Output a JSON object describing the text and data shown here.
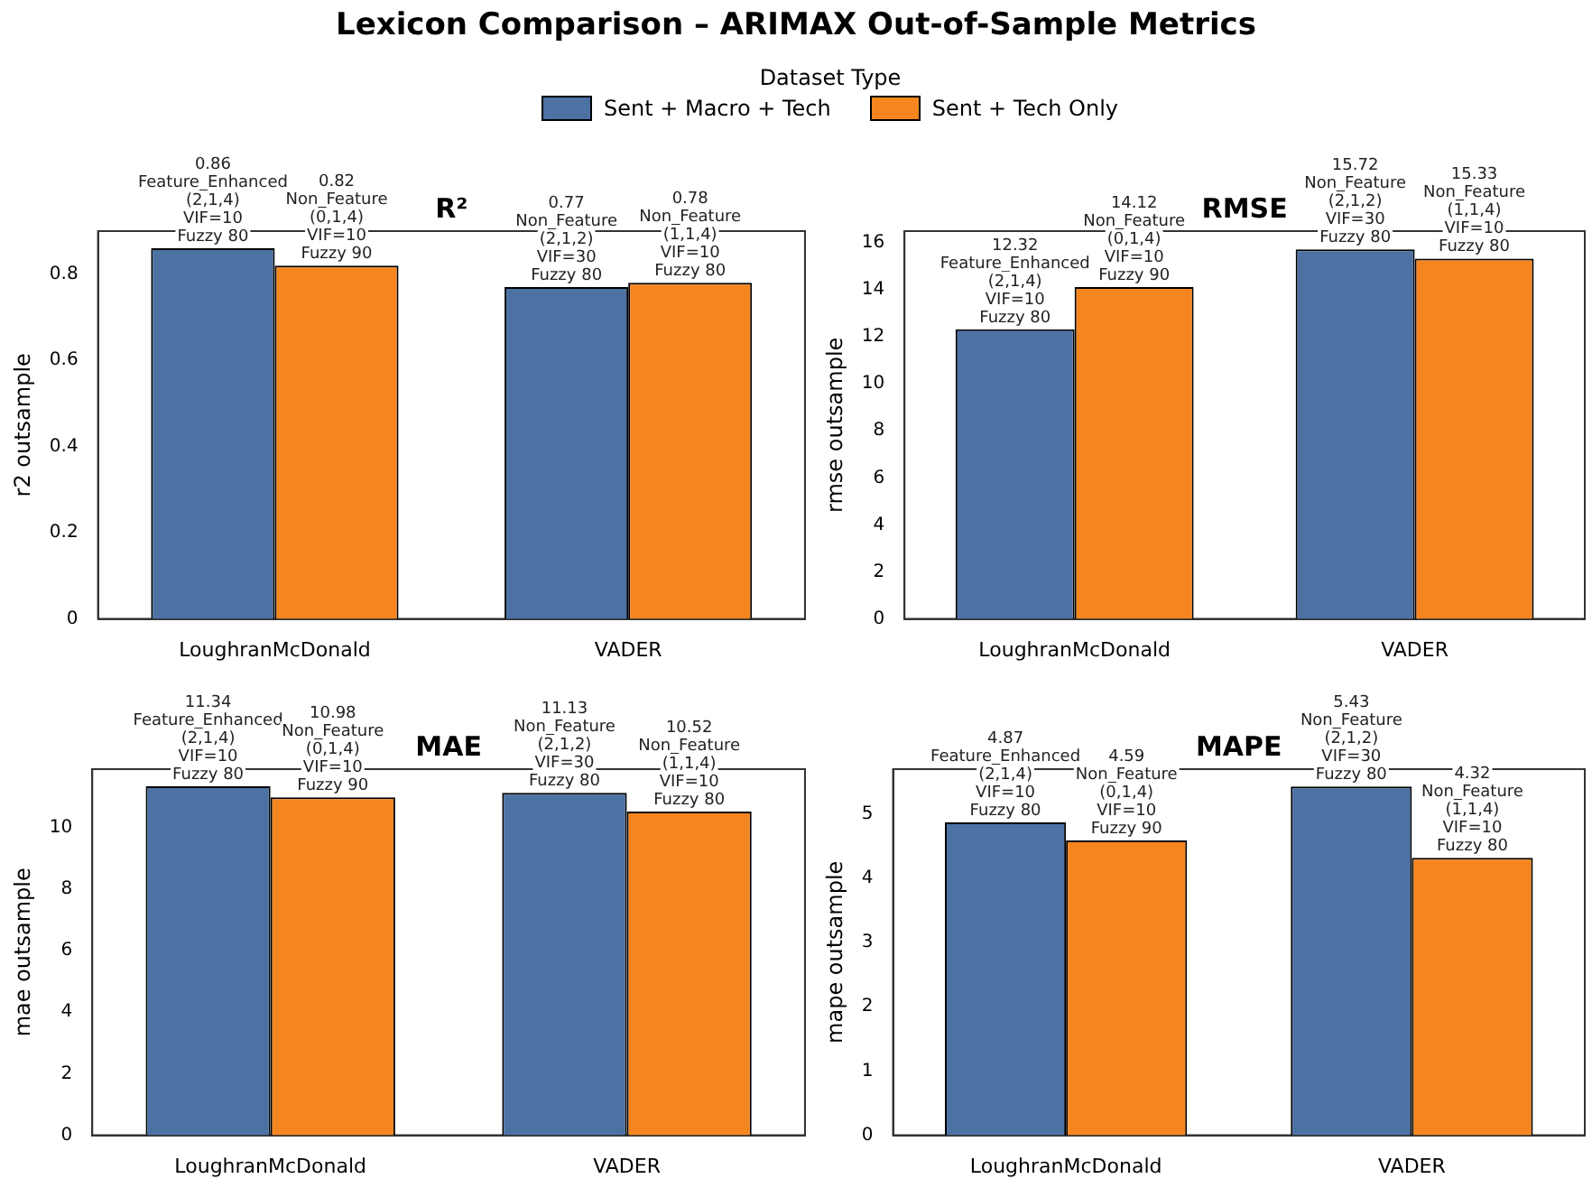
{
  "chart_data": [
    {
      "type": "other",
      "title": "Lexicon Comparison – ARIMAX Out-of-Sample Metrics"
    },
    {
      "type": "bar",
      "title": "R²",
      "ylabel": "r2 outsample",
      "categories": [
        "LoughranMcDonald",
        "VADER"
      ],
      "ylim": [
        0,
        0.9
      ],
      "yticks": [
        0,
        0.2,
        0.4,
        0.6,
        0.8
      ],
      "legend": "top",
      "legend_title": "Dataset Type",
      "series": [
        {
          "name": "Sent + Macro + Tech",
          "color": "#4c72a4",
          "values": [
            0.86,
            0.77
          ],
          "value_labels": [
            "0.86\nFeature_Enhanced\n(2,1,4)\nVIF=10\nFuzzy 80",
            "0.77\nNon_Feature\n(2,1,2)\nVIF=30\nFuzzy 80"
          ]
        },
        {
          "name": "Sent + Tech Only",
          "color": "#f5861f",
          "values": [
            0.82,
            0.78
          ],
          "value_labels": [
            "0.82\nNon_Feature\n(0,1,4)\nVIF=10\nFuzzy 90",
            "0.78\nNon_Feature\n(1,1,4)\nVIF=10\nFuzzy 80"
          ]
        }
      ]
    },
    {
      "type": "bar",
      "title": "RMSE",
      "ylabel": "rmse outsample",
      "categories": [
        "LoughranMcDonald",
        "VADER"
      ],
      "ylim": [
        0,
        16.5
      ],
      "yticks": [
        0,
        2,
        4,
        6,
        8,
        10,
        12,
        14,
        16
      ],
      "series": [
        {
          "color": "#4c72a4",
          "values": [
            12.32,
            15.72
          ],
          "value_labels": [
            "12.32\nFeature_Enhanced\n(2,1,4)\nVIF=10\nFuzzy 80",
            "15.72\nNon_Feature\n(2,1,2)\nVIF=30\nFuzzy 80"
          ]
        },
        {
          "color": "#f5861f",
          "values": [
            14.12,
            15.33
          ],
          "value_labels": [
            "14.12\nNon_Feature\n(0,1,4)\nVIF=10\nFuzzy 90",
            "15.33\nNon_Feature\n(1,1,4)\nVIF=10\nFuzzy 80"
          ]
        }
      ]
    },
    {
      "type": "bar",
      "title": "MAE",
      "ylabel": "mae outsample",
      "categories": [
        "LoughranMcDonald",
        "VADER"
      ],
      "ylim": [
        0,
        11.9
      ],
      "yticks": [
        0,
        2,
        4,
        6,
        8,
        10
      ],
      "series": [
        {
          "color": "#4c72a4",
          "values": [
            11.34,
            11.13
          ],
          "value_labels": [
            "11.34\nFeature_Enhanced\n(2,1,4)\nVIF=10\nFuzzy 80",
            "11.13\nNon_Feature\n(2,1,2)\nVIF=30\nFuzzy 80"
          ]
        },
        {
          "color": "#f5861f",
          "values": [
            10.98,
            10.52
          ],
          "value_labels": [
            "10.98\nNon_Feature\n(0,1,4)\nVIF=10\nFuzzy 90",
            "10.52\nNon_Feature\n(1,1,4)\nVIF=10\nFuzzy 80"
          ]
        }
      ]
    },
    {
      "type": "bar",
      "title": "MAPE",
      "ylabel": "mape outsample",
      "categories": [
        "LoughranMcDonald",
        "VADER"
      ],
      "ylim": [
        0,
        5.7
      ],
      "yticks": [
        0,
        1,
        2,
        3,
        4,
        5
      ],
      "series": [
        {
          "color": "#4c72a4",
          "values": [
            4.87,
            5.43
          ],
          "value_labels": [
            "4.87\nFeature_Enhanced\n(2,1,4)\nVIF=10\nFuzzy 80",
            "5.43\nNon_Feature\n(2,1,2)\nVIF=30\nFuzzy 80"
          ]
        },
        {
          "color": "#f5861f",
          "values": [
            4.59,
            4.32
          ],
          "value_labels": [
            "4.59\nNon_Feature\n(0,1,4)\nVIF=10\nFuzzy 90",
            "4.32\nNon_Feature\n(1,1,4)\nVIF=10\nFuzzy 80"
          ]
        }
      ]
    }
  ]
}
